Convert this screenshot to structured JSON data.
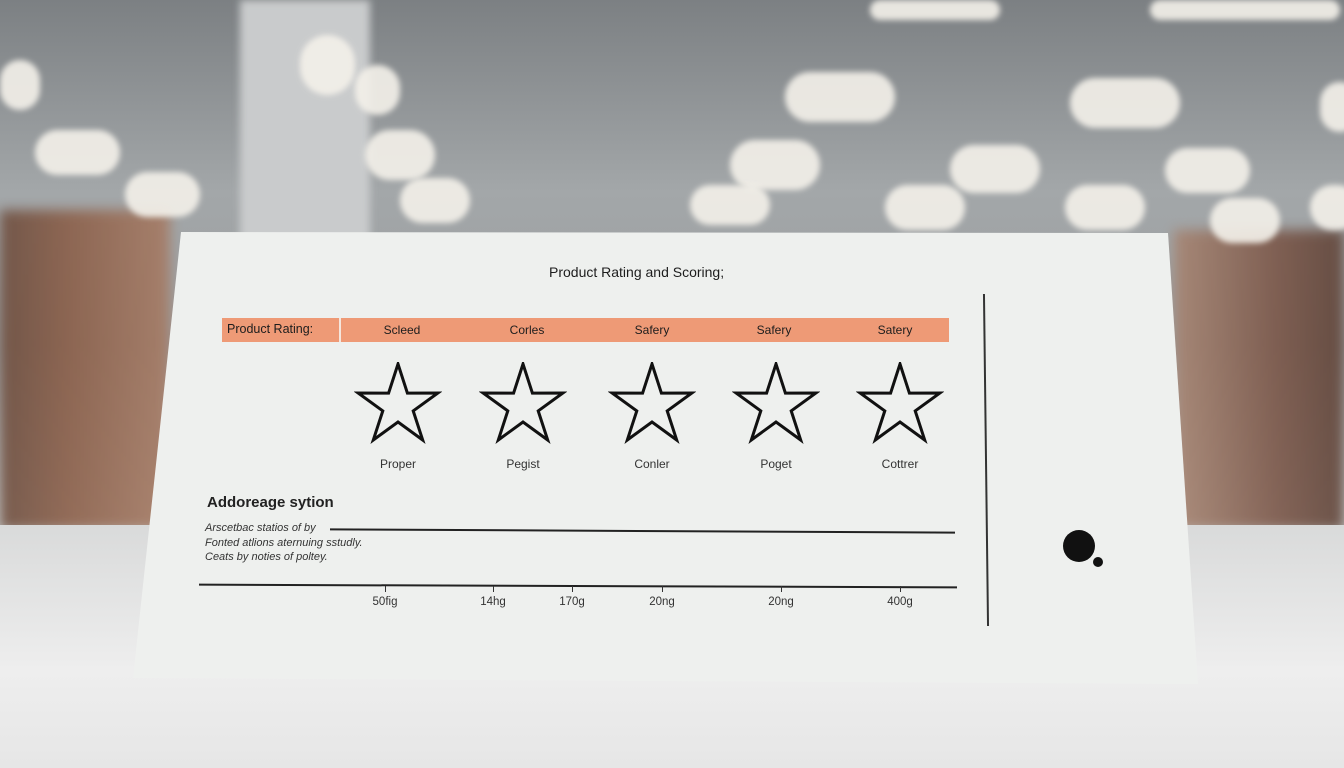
{
  "card": {
    "title": "Product Rating and Scoring;",
    "band_label": "Product Rating:",
    "band_color": "#ee9a76",
    "columns": [
      "Scleed",
      "Corles",
      "Safery",
      "Safery",
      "Satery"
    ],
    "star_labels": [
      "Proper",
      "Pegist",
      "Conler",
      "Poget",
      "Cottrer"
    ],
    "section_title": "Addoreage sytion",
    "notes": [
      "Arscetbac statios of by",
      "Fonted atlions aternuing sstudly.",
      "Ceats by noties of poltey."
    ],
    "axis_ticks": [
      "50fig",
      "14hg",
      "170g",
      "20ng",
      "20ng",
      "400g"
    ],
    "icon": "dot-logo-icon"
  }
}
